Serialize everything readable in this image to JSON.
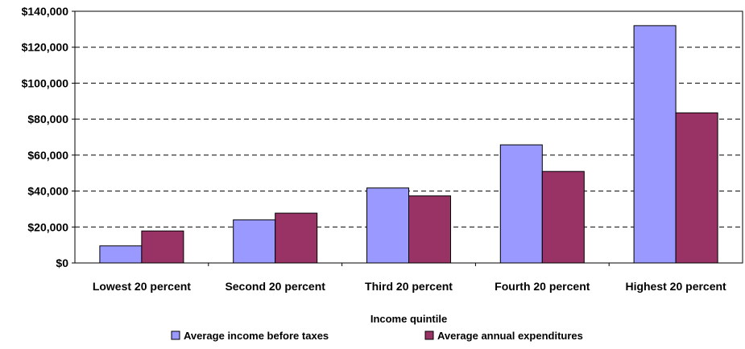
{
  "chart_data": {
    "type": "bar",
    "categories": [
      "Lowest 20 percent",
      "Second 20 percent",
      "Third 20 percent",
      "Fourth 20 percent",
      "Highest 20 percent"
    ],
    "series": [
      {
        "name": "Average income before taxes",
        "color": "#9999ff",
        "values": [
          9500,
          24000,
          41700,
          65700,
          132000
        ]
      },
      {
        "name": "Average annual expenditures",
        "color": "#993366",
        "values": [
          17800,
          27700,
          37300,
          50900,
          83500
        ]
      }
    ],
    "title": "",
    "xlabel": "Income quintile",
    "ylabel": "",
    "ylim": [
      0,
      140000
    ],
    "yticks": [
      {
        "value": 0,
        "label": "$0"
      },
      {
        "value": 20000,
        "label": "$20,000"
      },
      {
        "value": 40000,
        "label": "$40,000"
      },
      {
        "value": 60000,
        "label": "$60,000"
      },
      {
        "value": 80000,
        "label": "$80,000"
      },
      {
        "value": 100000,
        "label": "$100,000"
      },
      {
        "value": 120000,
        "label": "$120,000"
      },
      {
        "value": 140000,
        "label": "$140,000"
      }
    ],
    "grid": true,
    "legend": "bottom"
  }
}
